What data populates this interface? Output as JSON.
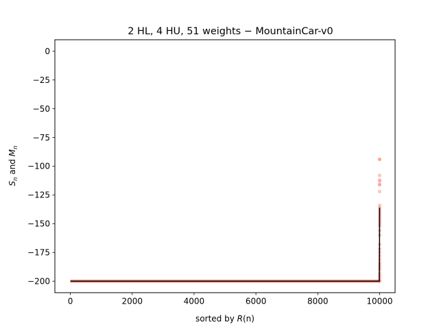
{
  "chart_data": {
    "type": "scatter",
    "title": "2 HL, 4 HU, 51 weights − MountainCar-v0",
    "xlabel": {
      "prefix": "sorted by ",
      "var": "R",
      "suffix": "(n)"
    },
    "ylabel": {
      "s": "S",
      "s_sub": "n",
      "mid": " and ",
      "m": "M",
      "m_sub": "n"
    },
    "xlim": [
      -500,
      10500
    ],
    "ylim": [
      -210,
      10
    ],
    "xticks": [
      0,
      2000,
      4000,
      6000,
      8000,
      10000
    ],
    "yticks": [
      0,
      -25,
      -50,
      -75,
      -100,
      -125,
      -150,
      -175,
      -200
    ],
    "xtick_labels": [
      "0",
      "2000",
      "4000",
      "6000",
      "8000",
      "10000"
    ],
    "ytick_labels": [
      "0",
      "−25",
      "−50",
      "−75",
      "−100",
      "−125",
      "−150",
      "−175",
      "−200"
    ],
    "series": [
      {
        "role": "S_n scatter",
        "color": "#fa8072",
        "baseline": {
          "x": [
            0,
            9985
          ],
          "y": -200
        },
        "points": [
          {
            "x": 10000,
            "y": -94
          },
          {
            "x": 10000,
            "y": -94
          },
          {
            "x": 10000,
            "y": -108
          },
          {
            "x": 10000,
            "y": -112
          },
          {
            "x": 10000,
            "y": -113
          },
          {
            "x": 10000,
            "y": -116
          },
          {
            "x": 10000,
            "y": -116
          },
          {
            "x": 10000,
            "y": -122
          },
          {
            "x": 10000,
            "y": -134
          },
          {
            "x": 10000,
            "y": -136
          },
          {
            "x": 10000,
            "y": -138
          },
          {
            "x": 10000,
            "y": -140
          },
          {
            "x": 10000,
            "y": -142
          },
          {
            "x": 10000,
            "y": -144
          },
          {
            "x": 10000,
            "y": -146
          },
          {
            "x": 10000,
            "y": -148
          },
          {
            "x": 10000,
            "y": -150
          },
          {
            "x": 10000,
            "y": -152
          },
          {
            "x": 10000,
            "y": -156
          },
          {
            "x": 10000,
            "y": -160
          },
          {
            "x": 10000,
            "y": -168
          },
          {
            "x": 10000,
            "y": -172
          },
          {
            "x": 10000,
            "y": -175
          },
          {
            "x": 10000,
            "y": -178
          },
          {
            "x": 10000,
            "y": -181
          },
          {
            "x": 10000,
            "y": -184
          },
          {
            "x": 10000,
            "y": -186
          },
          {
            "x": 10000,
            "y": -188
          },
          {
            "x": 10000,
            "y": -190
          },
          {
            "x": 10000,
            "y": -193
          },
          {
            "x": 10000,
            "y": -195
          },
          {
            "x": 10000,
            "y": -197
          },
          {
            "x": 10000,
            "y": -199
          },
          {
            "x": 9990,
            "y": -200
          },
          {
            "x": 9995,
            "y": -200
          }
        ]
      },
      {
        "role": "M_n line",
        "color": "#000000",
        "points": [
          {
            "x": 0,
            "y": -200
          },
          {
            "x": 9990,
            "y": -200
          },
          {
            "x": 9995,
            "y": -185
          },
          {
            "x": 10000,
            "y": -136
          }
        ]
      }
    ]
  }
}
